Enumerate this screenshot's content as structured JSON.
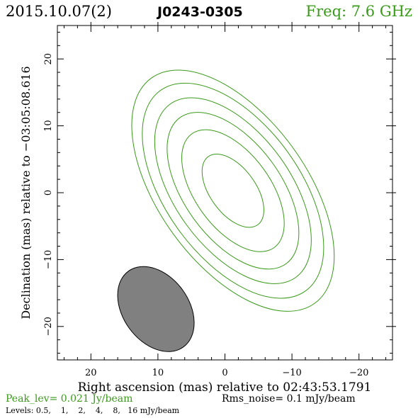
{
  "header": {
    "date": "2015.10.07(2)",
    "source": "J0243-0305",
    "freq": "Freq: 7.6 GHz"
  },
  "footer": {
    "peak": "Peak_lev=  0.021 Jy/beam",
    "rms": "Rms_noise=   0.1 mJy/beam",
    "levels": "Levels: 0.5,    1,    2,    4,    8,   16 mJy/beam"
  },
  "colors": {
    "contour": "#3a9a1a",
    "beam_fill": "#808080",
    "axis": "#000000"
  },
  "chart_data": {
    "type": "contour",
    "xlabel": "Right ascension (mas) relative to 02:43:53.1791",
    "ylabel": "Declination (mas) relative to −03:05:08.616",
    "xlim": [
      25,
      -25
    ],
    "ylim": [
      -25,
      25
    ],
    "x_ticks": [
      20,
      10,
      0,
      -10,
      -20
    ],
    "x_tick_labels": [
      "20",
      "10",
      "0",
      "−10",
      "−20"
    ],
    "y_ticks": [
      20,
      10,
      0,
      -10,
      -20
    ],
    "y_tick_labels": [
      "20",
      "10",
      "0",
      "−10",
      "−20"
    ],
    "minor_tick_step": 2,
    "levels_mjy": [
      0.5,
      1,
      2,
      4,
      8,
      16
    ],
    "contour_center": [
      -1.2,
      0.3
    ],
    "contour_pa_deg": 36,
    "contours": [
      {
        "level": 0.5,
        "semi_major": 20.8,
        "semi_minor": 11.0
      },
      {
        "level": 1,
        "semi_major": 18.5,
        "semi_minor": 10.0
      },
      {
        "level": 2,
        "semi_major": 16.0,
        "semi_minor": 8.6
      },
      {
        "level": 4,
        "semi_major": 13.5,
        "semi_minor": 7.2
      },
      {
        "level": 8,
        "semi_major": 10.5,
        "semi_minor": 5.6
      },
      {
        "level": 16,
        "semi_major": 6.3,
        "semi_minor": 3.4
      }
    ],
    "beam": {
      "center": [
        10.3,
        -17.4
      ],
      "semi_major": 7.0,
      "semi_minor": 4.9,
      "pa_deg": 36
    }
  }
}
